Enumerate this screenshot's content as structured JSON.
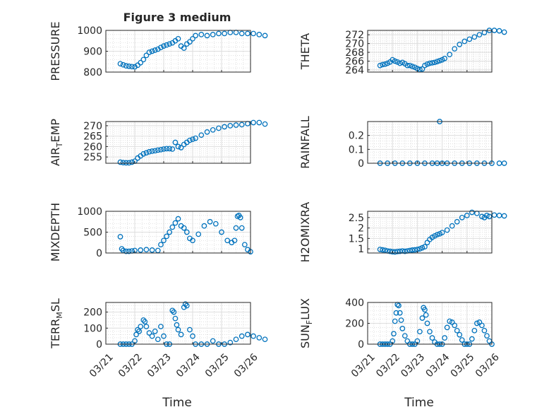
{
  "figure": {
    "title": "Figure 3 medium",
    "xlabel": "Time",
    "x_tick_labels": [
      "03/21",
      "03/22",
      "03/23",
      "03/24",
      "03/25",
      "03/26"
    ],
    "marker_color": "#0072BD",
    "grid": "on (major + minor dotted)"
  },
  "chart_data": [
    {
      "id": "pressure",
      "type": "scatter",
      "ylabel": "PRESSURE",
      "ylim": [
        800,
        1000
      ],
      "yticks": [
        800,
        900,
        1000
      ],
      "x": [
        0.5,
        0.6,
        0.7,
        0.8,
        0.9,
        1.0,
        1.1,
        1.2,
        1.3,
        1.4,
        1.5,
        1.6,
        1.7,
        1.8,
        1.9,
        2.0,
        2.1,
        2.2,
        2.3,
        2.4,
        2.5,
        2.6,
        2.7,
        2.8,
        2.9,
        3.0,
        3.1,
        3.3,
        3.5,
        3.7,
        3.9,
        4.1,
        4.3,
        4.5,
        4.7,
        4.9,
        5.1,
        5.3,
        5.5
      ],
      "y": [
        840,
        835,
        830,
        828,
        826,
        825,
        833,
        845,
        860,
        880,
        895,
        900,
        905,
        910,
        918,
        925,
        930,
        935,
        940,
        950,
        960,
        925,
        915,
        935,
        945,
        960,
        975,
        980,
        975,
        980,
        985,
        985,
        990,
        990,
        985,
        985,
        985,
        980,
        975
      ]
    },
    {
      "id": "theta",
      "type": "scatter",
      "ylabel": "THETA",
      "ylim": [
        263.5,
        273
      ],
      "yticks": [
        264,
        266,
        268,
        270,
        272
      ],
      "x": [
        0.5,
        0.6,
        0.7,
        0.8,
        0.9,
        1.0,
        1.1,
        1.2,
        1.3,
        1.4,
        1.5,
        1.6,
        1.7,
        1.8,
        1.9,
        2.0,
        2.1,
        2.2,
        2.3,
        2.4,
        2.5,
        2.6,
        2.7,
        2.8,
        2.9,
        3.0,
        3.1,
        3.3,
        3.5,
        3.7,
        3.9,
        4.1,
        4.3,
        4.5,
        4.7,
        4.9,
        5.1,
        5.3,
        5.5
      ],
      "y": [
        265.0,
        265.2,
        265.3,
        265.5,
        265.8,
        266.3,
        266.0,
        265.8,
        265.5,
        265.7,
        265.4,
        265.0,
        265.0,
        264.8,
        264.6,
        264.3,
        264.1,
        264.2,
        265.0,
        265.3,
        265.5,
        265.6,
        265.7,
        265.9,
        266.1,
        266.3,
        266.6,
        267.5,
        268.8,
        269.8,
        270.5,
        271.0,
        271.5,
        272.0,
        272.5,
        273.0,
        273.0,
        272.9,
        272.6
      ]
    },
    {
      "id": "air_temp",
      "type": "scatter",
      "ylabel": "AIR_TEMP",
      "ylim": [
        252,
        272
      ],
      "yticks": [
        255,
        260,
        265,
        270
      ],
      "x": [
        0.5,
        0.6,
        0.7,
        0.8,
        0.9,
        1.0,
        1.1,
        1.2,
        1.3,
        1.4,
        1.5,
        1.6,
        1.7,
        1.8,
        1.9,
        2.0,
        2.1,
        2.2,
        2.3,
        2.4,
        2.5,
        2.6,
        2.7,
        2.8,
        2.9,
        3.0,
        3.1,
        3.3,
        3.5,
        3.7,
        3.9,
        4.1,
        4.3,
        4.5,
        4.7,
        4.9,
        5.1,
        5.3,
        5.5
      ],
      "y": [
        252.5,
        252.3,
        252.2,
        252.2,
        252.5,
        253.0,
        254.5,
        255.5,
        256.5,
        257.0,
        257.5,
        257.8,
        258.0,
        258.3,
        258.5,
        258.8,
        259.0,
        259.0,
        258.8,
        262.0,
        260.0,
        259.5,
        261.0,
        262.0,
        263.0,
        263.5,
        264.0,
        265.5,
        267.0,
        268.0,
        268.8,
        269.5,
        270.0,
        270.3,
        270.5,
        271.0,
        271.5,
        271.5,
        270.8
      ]
    },
    {
      "id": "rainfall",
      "type": "scatter",
      "ylabel": "RAINFALL",
      "ylim": [
        0,
        0.3
      ],
      "yticks": [
        0,
        0.1,
        0.2
      ],
      "x": [
        0.5,
        0.8,
        1.1,
        1.4,
        1.7,
        2.0,
        2.3,
        2.6,
        2.8,
        2.9,
        3.0,
        3.2,
        3.5,
        3.8,
        4.1,
        4.4,
        4.7,
        5.0,
        5.3,
        5.5
      ],
      "y": [
        0,
        0,
        0,
        0,
        0,
        0,
        0,
        0,
        0,
        0.3,
        0,
        0,
        0,
        0,
        0,
        0,
        0,
        0,
        0,
        0
      ]
    },
    {
      "id": "mixdepth",
      "type": "scatter",
      "ylabel": "MIXDEPTH",
      "ylim": [
        0,
        1000
      ],
      "yticks": [
        0,
        500,
        1000
      ],
      "x": [
        0.5,
        0.55,
        0.6,
        0.7,
        0.8,
        0.9,
        1.0,
        1.2,
        1.4,
        1.6,
        1.8,
        1.9,
        2.0,
        2.1,
        2.2,
        2.3,
        2.4,
        2.5,
        2.6,
        2.7,
        2.8,
        2.9,
        3.0,
        3.2,
        3.4,
        3.6,
        3.8,
        4.0,
        4.2,
        4.35,
        4.45,
        4.5,
        4.55,
        4.6,
        4.65,
        4.7,
        4.8,
        4.9,
        5.0
      ],
      "y": [
        390,
        100,
        60,
        40,
        40,
        50,
        60,
        70,
        80,
        70,
        60,
        200,
        300,
        400,
        500,
        620,
        720,
        820,
        650,
        600,
        500,
        350,
        300,
        450,
        650,
        750,
        700,
        500,
        300,
        250,
        300,
        600,
        880,
        900,
        850,
        600,
        200,
        80,
        30
      ]
    },
    {
      "id": "h2omixra",
      "type": "scatter",
      "ylabel": "H2OMIXRA",
      "ylim": [
        0.8,
        2.8
      ],
      "yticks": [
        1,
        1.5,
        2,
        2.5
      ],
      "x": [
        0.5,
        0.6,
        0.7,
        0.8,
        0.9,
        1.0,
        1.1,
        1.2,
        1.3,
        1.4,
        1.5,
        1.6,
        1.7,
        1.8,
        1.9,
        2.0,
        2.1,
        2.2,
        2.3,
        2.4,
        2.5,
        2.6,
        2.7,
        2.8,
        2.9,
        3.0,
        3.2,
        3.4,
        3.6,
        3.8,
        4.0,
        4.2,
        4.4,
        4.6,
        4.7,
        4.8,
        4.9,
        5.1,
        5.3,
        5.5
      ],
      "y": [
        0.97,
        0.95,
        0.93,
        0.9,
        0.88,
        0.86,
        0.85,
        0.87,
        0.88,
        0.9,
        0.88,
        0.9,
        0.92,
        0.94,
        0.95,
        0.97,
        1.0,
        1.05,
        1.1,
        1.3,
        1.45,
        1.55,
        1.62,
        1.68,
        1.72,
        1.78,
        1.9,
        2.1,
        2.3,
        2.5,
        2.6,
        2.75,
        2.7,
        2.55,
        2.5,
        2.6,
        2.55,
        2.62,
        2.6,
        2.58
      ]
    },
    {
      "id": "terr_msl",
      "type": "scatter",
      "ylabel": "TERR_MSL",
      "ylim": [
        0,
        260
      ],
      "yticks": [
        0,
        100,
        200
      ],
      "x": [
        0.5,
        0.6,
        0.7,
        0.8,
        0.9,
        1.0,
        1.05,
        1.1,
        1.15,
        1.2,
        1.3,
        1.35,
        1.4,
        1.5,
        1.6,
        1.7,
        1.8,
        1.9,
        2.0,
        2.1,
        2.2,
        2.3,
        2.35,
        2.4,
        2.45,
        2.5,
        2.6,
        2.7,
        2.75,
        2.8,
        2.9,
        3.0,
        3.1,
        3.3,
        3.5,
        3.7,
        3.9,
        4.1,
        4.3,
        4.5,
        4.7,
        4.9,
        5.1,
        5.3,
        5.5
      ],
      "y": [
        0,
        0,
        0,
        0,
        0,
        20,
        60,
        90,
        80,
        110,
        150,
        140,
        110,
        70,
        50,
        80,
        30,
        110,
        50,
        0,
        0,
        210,
        200,
        160,
        120,
        90,
        60,
        230,
        250,
        240,
        90,
        50,
        0,
        0,
        0,
        20,
        0,
        0,
        10,
        30,
        50,
        60,
        50,
        40,
        30
      ]
    },
    {
      "id": "sun_flux",
      "type": "scatter",
      "ylabel": "SUN_FLUX",
      "ylim": [
        0,
        400
      ],
      "yticks": [
        0,
        200,
        400
      ],
      "x": [
        0.5,
        0.6,
        0.7,
        0.8,
        0.9,
        1.0,
        1.05,
        1.1,
        1.15,
        1.2,
        1.25,
        1.3,
        1.35,
        1.4,
        1.5,
        1.6,
        1.7,
        1.8,
        1.9,
        2.0,
        2.1,
        2.2,
        2.25,
        2.3,
        2.35,
        2.4,
        2.5,
        2.6,
        2.7,
        2.8,
        2.9,
        3.0,
        3.1,
        3.2,
        3.3,
        3.4,
        3.5,
        3.6,
        3.7,
        3.8,
        3.9,
        4.0,
        4.1,
        4.2,
        4.3,
        4.4,
        4.5,
        4.6,
        4.7,
        4.8,
        4.9,
        5.0
      ],
      "y": [
        0,
        0,
        0,
        0,
        0,
        30,
        100,
        220,
        300,
        380,
        370,
        300,
        230,
        150,
        80,
        30,
        0,
        0,
        0,
        30,
        120,
        250,
        350,
        330,
        280,
        200,
        120,
        60,
        20,
        0,
        0,
        0,
        60,
        160,
        220,
        210,
        180,
        130,
        90,
        40,
        0,
        0,
        0,
        50,
        130,
        200,
        210,
        180,
        130,
        80,
        30,
        0
      ]
    }
  ]
}
